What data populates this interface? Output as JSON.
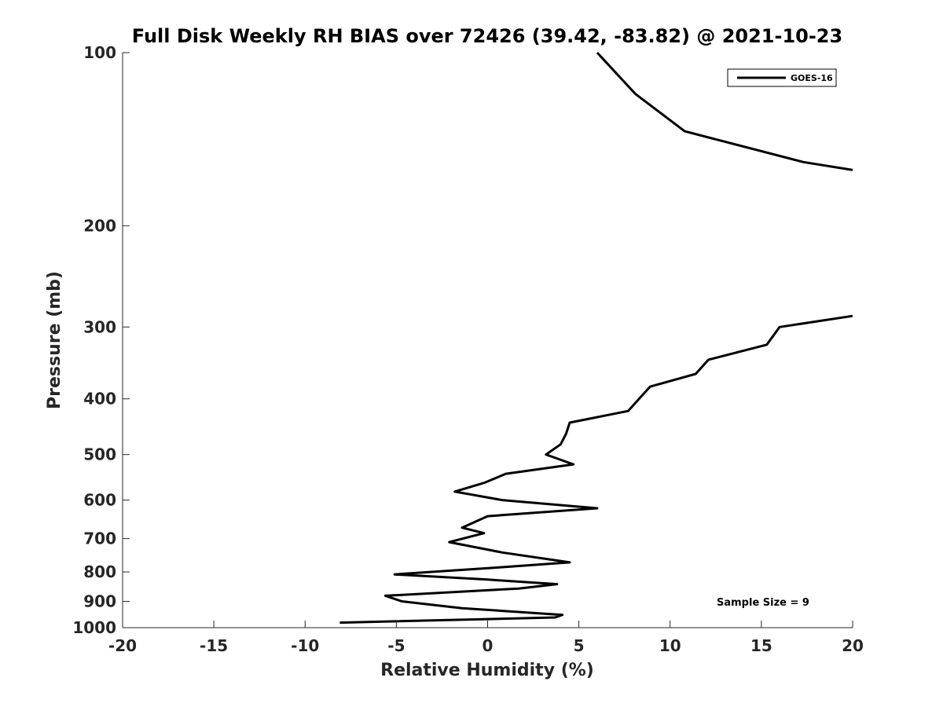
{
  "chart_data": {
    "type": "line",
    "title": "Full Disk Weekly RH BIAS over 72426 (39.42, -83.82) @ 2021-10-23",
    "xlabel": "Relative Humidity (%)",
    "ylabel": "Pressure (mb)",
    "xlim": [
      -20,
      20
    ],
    "ylim": [
      100,
      1000
    ],
    "y_scale": "log",
    "y_reversed": true,
    "xticks": [
      "-20",
      "-15",
      "-10",
      "-5",
      "0",
      "5",
      "10",
      "15",
      "20"
    ],
    "yticks": [
      "100",
      "200",
      "300",
      "400",
      "500",
      "600",
      "700",
      "800",
      "900",
      "1000"
    ],
    "grid": false,
    "legend_position": "top-right",
    "annotation": "Sample Size = 9",
    "series": [
      {
        "name": "GOES-16",
        "color": "#000000",
        "segments": [
          [
            {
              "x": 6.0,
              "y": 100
            },
            {
              "x": 8.1,
              "y": 118
            },
            {
              "x": 10.8,
              "y": 137
            },
            {
              "x": 17.3,
              "y": 155
            },
            {
              "x": 20.0,
              "y": 160
            }
          ],
          [
            {
              "x": 20.0,
              "y": 287
            },
            {
              "x": 16.0,
              "y": 300
            },
            {
              "x": 15.3,
              "y": 322
            },
            {
              "x": 12.1,
              "y": 342
            },
            {
              "x": 11.4,
              "y": 362
            },
            {
              "x": 8.9,
              "y": 381
            },
            {
              "x": 7.7,
              "y": 420
            },
            {
              "x": 4.5,
              "y": 440
            },
            {
              "x": 4.3,
              "y": 460
            },
            {
              "x": 4.0,
              "y": 480
            },
            {
              "x": 3.2,
              "y": 500
            },
            {
              "x": 4.7,
              "y": 520
            },
            {
              "x": 1.0,
              "y": 540
            },
            {
              "x": -0.2,
              "y": 560
            },
            {
              "x": -1.8,
              "y": 580
            },
            {
              "x": 0.8,
              "y": 600
            },
            {
              "x": 6.0,
              "y": 620
            },
            {
              "x": 0.0,
              "y": 640
            },
            {
              "x": -1.4,
              "y": 670
            },
            {
              "x": -0.2,
              "y": 685
            },
            {
              "x": -2.1,
              "y": 710
            },
            {
              "x": 0.8,
              "y": 740
            },
            {
              "x": 4.5,
              "y": 770
            },
            {
              "x": 0.8,
              "y": 785
            },
            {
              "x": -5.1,
              "y": 808
            },
            {
              "x": 0.0,
              "y": 825
            },
            {
              "x": 3.8,
              "y": 840
            },
            {
              "x": 1.7,
              "y": 855
            },
            {
              "x": -5.6,
              "y": 880
            },
            {
              "x": -4.7,
              "y": 900
            },
            {
              "x": -1.4,
              "y": 925
            },
            {
              "x": 4.1,
              "y": 950
            },
            {
              "x": 3.7,
              "y": 960
            },
            {
              "x": -8.1,
              "y": 980
            }
          ]
        ]
      }
    ]
  }
}
